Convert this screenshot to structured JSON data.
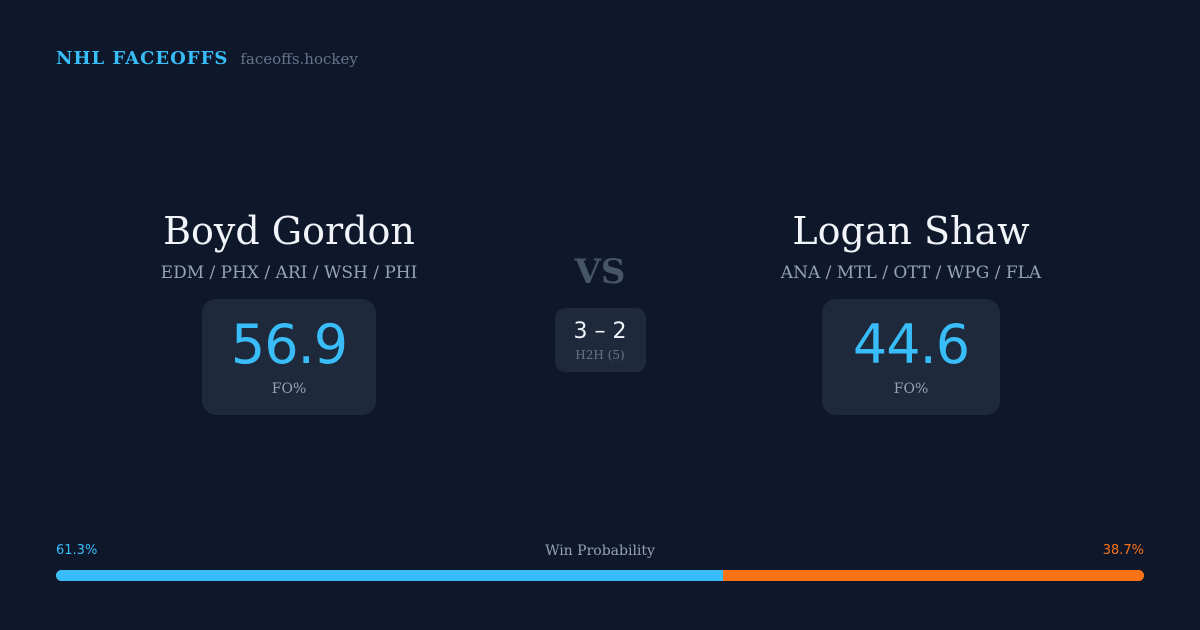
{
  "brand": {
    "name": "NHL FACEOFFS",
    "site": "faceoffs.hockey"
  },
  "player_left": {
    "name": "Boyd Gordon",
    "teams": "EDM / PHX / ARI / WSH / PHI",
    "stat_value": "56.9",
    "stat_label": "FO%"
  },
  "versus": {
    "label": "VS",
    "h2h_score": "3 – 2",
    "h2h_label": "H2H (5)"
  },
  "player_right": {
    "name": "Logan Shaw",
    "teams": "ANA / MTL / OTT / WPG / FLA",
    "stat_value": "44.6",
    "stat_label": "FO%"
  },
  "win_probability": {
    "title": "Win Probability",
    "left_label": "61.3%",
    "right_label": "38.7%",
    "left_fraction": 0.613,
    "right_fraction": 0.387,
    "left_color": "#38bdf8",
    "right_color": "#f97316"
  },
  "colors": {
    "background": "#0f172a",
    "card": "#1e293b",
    "accent": "#38bdf8",
    "secondary_accent": "#f97316"
  }
}
